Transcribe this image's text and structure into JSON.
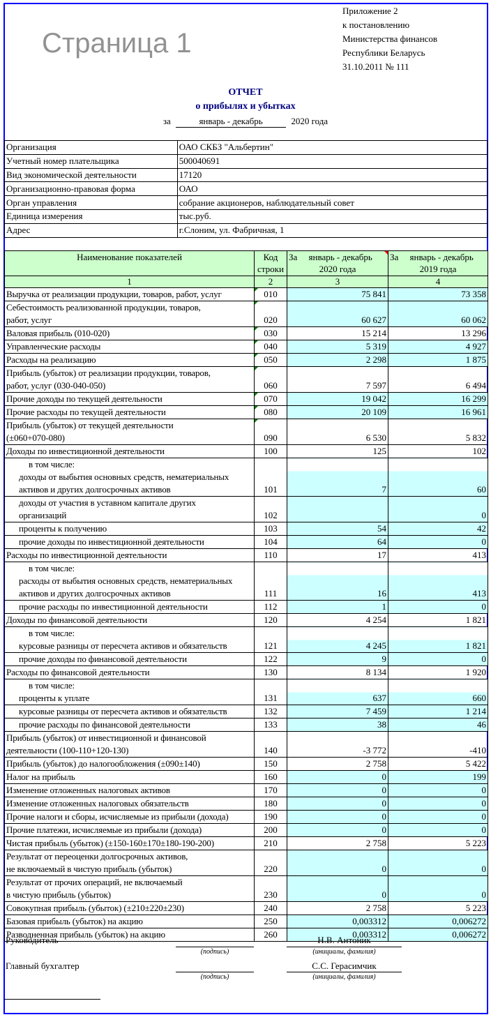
{
  "appendix": [
    "Приложение 2",
    "к постановлению",
    "Министерства финансов",
    "Республики Беларусь",
    "31.10.2011 № 111"
  ],
  "title": "ОТЧЕТ",
  "subtitle": "о прибылях и убытках",
  "period": {
    "prefix": "за",
    "value": "январь  -  декабрь",
    "suffix": "2020 года"
  },
  "info": [
    {
      "label": "Организация",
      "value": "ОАО СКБЗ \"Альбертин\""
    },
    {
      "label": "Учетный номер плательщика",
      "value": "500040691"
    },
    {
      "label": "Вид экономической деятельности",
      "value": "17120"
    },
    {
      "label": "Организационно-правовая форма",
      "value": "ОАО"
    },
    {
      "label": "Орган управления",
      "value": "собрание акционеров, наблюдательный совет"
    },
    {
      "label": "Единица измерения",
      "value": "тыс.руб."
    },
    {
      "label": "Адрес",
      "value": "г.Слоним, ул. Фабричная, 1"
    }
  ],
  "table": {
    "headers": {
      "name": "Наименование показателей",
      "code": [
        "Код",
        "строки"
      ],
      "current": {
        "prefix": "За",
        "period": "январь - декабрь",
        "year": "2020 года"
      },
      "previous": {
        "prefix": "За",
        "period": "январь - декабрь",
        "year": "2019 года"
      }
    },
    "col_numbers": [
      "1",
      "2",
      "3",
      "4"
    ],
    "fill_color": "#ccffff",
    "header_color": "#ccffcc",
    "rows": [
      {
        "lines": [
          "Выручка от реализации продукции, товаров, работ, услуг"
        ],
        "code": "010",
        "current": "75 841",
        "previous": "73 358",
        "fill": true,
        "mark": true
      },
      {
        "lines": [
          "Себестоимость реализованной продукции, товаров,",
          "работ, услуг"
        ],
        "code": "020",
        "current": "60 627",
        "previous": "60 062",
        "fill": true,
        "mark": true
      },
      {
        "lines": [
          "Валовая прибыль (010-020)"
        ],
        "code": "030",
        "current": "15 214",
        "previous": "13 296",
        "fill": false,
        "mark": true
      },
      {
        "lines": [
          "Управленческие расходы"
        ],
        "code": "040",
        "current": "5 319",
        "previous": "4 927",
        "fill": true,
        "mark": true
      },
      {
        "lines": [
          "Расходы на реализацию"
        ],
        "code": "050",
        "current": "2 298",
        "previous": "1 875",
        "fill": true,
        "mark": true
      },
      {
        "lines": [
          "Прибыль (убыток) от реализации продукции, товаров,",
          "работ, услуг (030-040-050)"
        ],
        "code": "060",
        "current": "7 597",
        "previous": "6 494",
        "fill": false,
        "mark": true
      },
      {
        "lines": [
          "Прочие доходы по текущей деятельности"
        ],
        "code": "070",
        "current": "19 042",
        "previous": "16 299",
        "fill": true,
        "mark": true
      },
      {
        "lines": [
          "Прочие расходы по текущей деятельности"
        ],
        "code": "080",
        "current": "20 109",
        "previous": "16 961",
        "fill": true,
        "mark": true
      },
      {
        "lines": [
          "Прибыль (убыток) от текущей деятельности",
          "(±060+070-080)"
        ],
        "code": "090",
        "current": "6 530",
        "previous": "5 832",
        "fill": false,
        "mark": true
      },
      {
        "lines": [
          "Доходы по инвестиционной деятельности"
        ],
        "code": "100",
        "current": "125",
        "previous": "102",
        "fill": false
      },
      {
        "pre": "в том числе:",
        "lines": [
          "доходы от выбытия основных средств, нематериальных",
          "активов и других долгосрочных активов"
        ],
        "code": "101",
        "current": "7",
        "previous": "60",
        "fill": true,
        "indent": true
      },
      {
        "lines": [
          "доходы от участия в уставном капитале других",
          "организаций"
        ],
        "code": "102",
        "current": "",
        "previous": "0",
        "fill": true,
        "indent": true
      },
      {
        "lines": [
          "проценты к получению"
        ],
        "code": "103",
        "current": "54",
        "previous": "42",
        "fill": true,
        "indent": true
      },
      {
        "lines": [
          "прочие доходы по инвестиционной деятельности"
        ],
        "code": "104",
        "current": "64",
        "previous": "0",
        "fill": true,
        "indent": true
      },
      {
        "lines": [
          "Расходы по инвестиционной деятельности"
        ],
        "code": "110",
        "current": "17",
        "previous": "413",
        "fill": false
      },
      {
        "pre": "в том числе:",
        "lines": [
          "расходы от выбытия основных средств, нематериальных",
          "активов и других долгосрочных активов"
        ],
        "code": "111",
        "current": "16",
        "previous": "413",
        "fill": true,
        "indent": true
      },
      {
        "lines": [
          "прочие расходы по инвестиционной деятельности"
        ],
        "code": "112",
        "current": "1",
        "previous": "0",
        "fill": true,
        "indent": true
      },
      {
        "lines": [
          "Доходы по финансовой деятельности"
        ],
        "code": "120",
        "current": "4 254",
        "previous": "1 821",
        "fill": false
      },
      {
        "pre": "в том числе:",
        "lines": [
          "курсовые разницы от пересчета активов и обязательств"
        ],
        "code": "121",
        "current": "4 245",
        "previous": "1 821",
        "fill": true,
        "indent": true
      },
      {
        "lines": [
          "прочие доходы по финансовой деятельности"
        ],
        "code": "122",
        "current": "9",
        "previous": "0",
        "fill": true,
        "indent": true
      },
      {
        "lines": [
          "Расходы по финансовой деятельности"
        ],
        "code": "130",
        "current": "8 134",
        "previous": "1 920",
        "fill": false
      },
      {
        "pre": "в том числе:",
        "lines": [
          "проценты к уплате"
        ],
        "code": "131",
        "current": "637",
        "previous": "660",
        "fill": true,
        "indent": true
      },
      {
        "lines": [
          "курсовые разницы от пересчета активов и обязательств"
        ],
        "code": "132",
        "current": "7 459",
        "previous": "1 214",
        "fill": true,
        "indent": true
      },
      {
        "lines": [
          "прочие расходы по финансовой деятельности"
        ],
        "code": "133",
        "current": "38",
        "previous": "46",
        "fill": true,
        "indent": true
      },
      {
        "lines": [
          "Прибыль (убыток) от инвестиционной и финансовой",
          "деятельности (100-110+120-130)"
        ],
        "code": "140",
        "current": "-3 772",
        "previous": "-410",
        "fill": false
      },
      {
        "lines": [
          "Прибыль (убыток) до налогообложения (±090±140)"
        ],
        "code": "150",
        "current": "2 758",
        "previous": "5 422",
        "fill": false
      },
      {
        "lines": [
          "Налог на прибыль"
        ],
        "code": "160",
        "current": "0",
        "previous": "199",
        "fill": true
      },
      {
        "lines": [
          "Изменение отложенных налоговых активов"
        ],
        "code": "170",
        "current": "0",
        "previous": "0",
        "fill": true
      },
      {
        "lines": [
          "Изменение отложенных налоговых обязательств"
        ],
        "code": "180",
        "current": "0",
        "previous": "0",
        "fill": true
      },
      {
        "lines": [
          "Прочие налоги и сборы, исчисляемые из прибыли (дохода)"
        ],
        "code": "190",
        "current": "0",
        "previous": "0",
        "fill": true
      },
      {
        "lines": [
          "Прочие платежи, исчисляемые из прибыли (дохода)"
        ],
        "code": "200",
        "current": "0",
        "previous": "0",
        "fill": true
      },
      {
        "lines": [
          "Чистая прибыль (убыток) (±150-160±170±180-190-200)"
        ],
        "code": "210",
        "current": "2 758",
        "previous": "5 223",
        "fill": false
      },
      {
        "lines": [
          "Результат от переоценки долгосрочных активов,",
          "не включаемый в чистую прибыль (убыток)"
        ],
        "code": "220",
        "current": "0",
        "previous": "0",
        "fill": true
      },
      {
        "lines": [
          "Результат от прочих операций, не включаемый",
          "в чистую прибыль (убыток)"
        ],
        "code": "230",
        "current": "0",
        "previous": "0",
        "fill": true
      },
      {
        "lines": [
          "Совокупная прибыль (убыток) (±210±220±230)"
        ],
        "code": "240",
        "current": "2 758",
        "previous": "5 223",
        "fill": false
      },
      {
        "lines": [
          "Базовая прибыль (убыток) на акцию"
        ],
        "code": "250",
        "current": "0,003312",
        "previous": "0,006272",
        "fill": true
      },
      {
        "lines": [
          "Разводненная прибыль (убыток) на акцию"
        ],
        "code": "260",
        "current": "0,003312",
        "previous": "0,006272",
        "fill": true
      }
    ]
  },
  "watermark": "Страница 1",
  "signatures": {
    "head": {
      "role": "Руководитель",
      "name": "Н.В. Антоник"
    },
    "accountant": {
      "role": "Главный бухгалтер",
      "name": "С.С. Герасимчик"
    },
    "sign_caption": "(подпись)",
    "name_caption": "(инициалы, фамилия)"
  }
}
